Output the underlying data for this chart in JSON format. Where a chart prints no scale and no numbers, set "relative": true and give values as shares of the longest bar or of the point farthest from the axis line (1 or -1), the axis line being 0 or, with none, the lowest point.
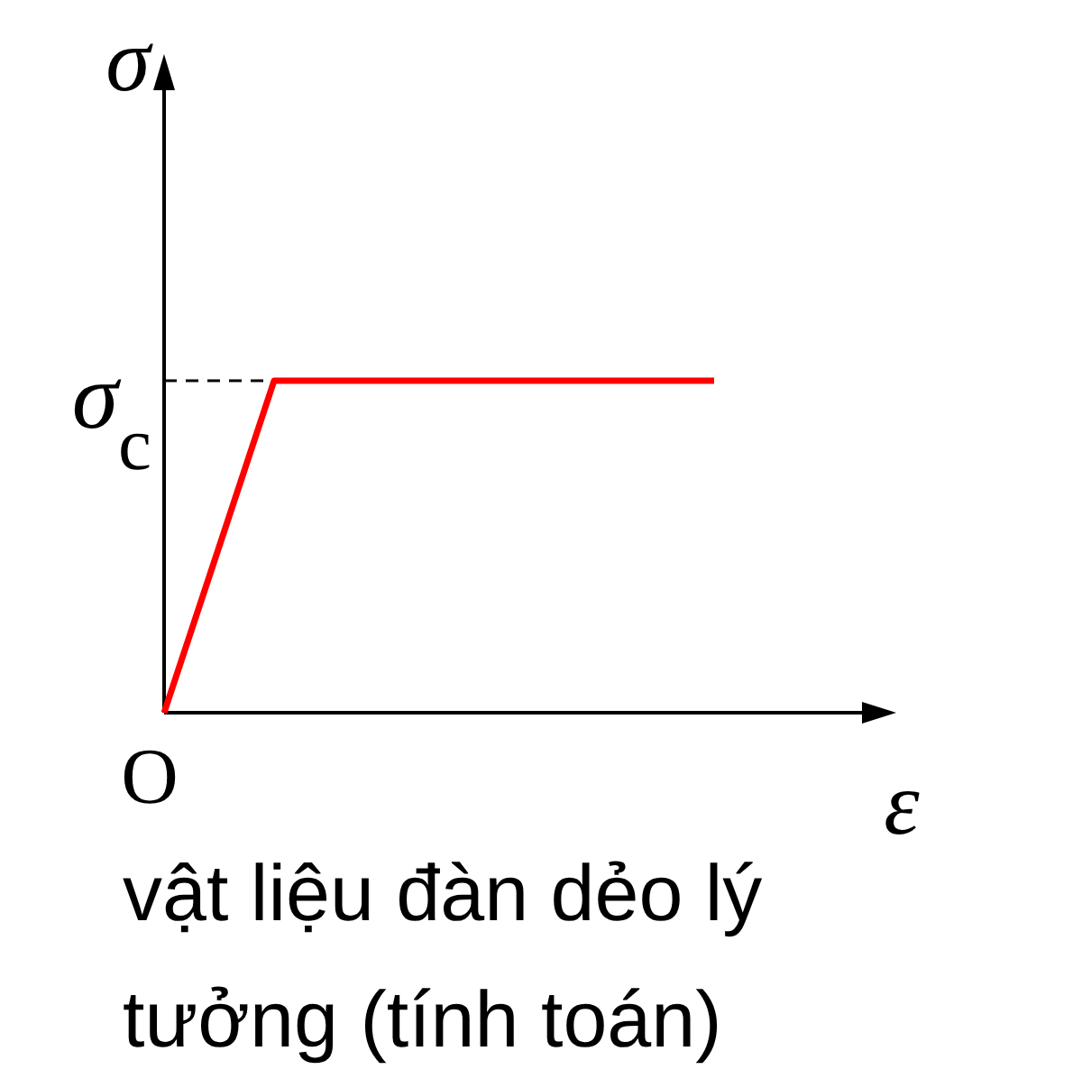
{
  "chart_data": {
    "type": "line",
    "relative": true,
    "title": "vật liệu đàn dẻo lý tưởng (tính toán)",
    "xlabel": "ε",
    "ylabel": "σ",
    "categories": [
      null,
      null,
      null,
      null,
      null,
      null,
      null
    ],
    "values": [
      0,
      1,
      1,
      1,
      1,
      1,
      null
    ],
    "color": "#ff0000",
    "ref_lines": [
      {
        "axis": "y",
        "value": 1,
        "label": "σ$_{c}$",
        "line_style": "dashed",
        "color": "#000000"
      }
    ],
    "annotations": [
      "O"
    ]
  }
}
